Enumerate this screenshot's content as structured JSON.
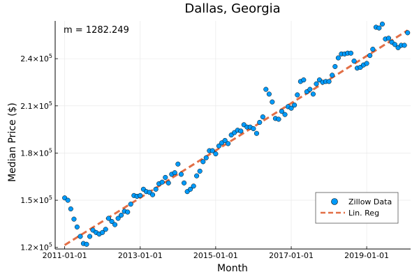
{
  "chart_data": {
    "type": "scatter",
    "title": "Dallas, Georgia",
    "xlabel": "Month",
    "ylabel": "Median Price ($)",
    "annotation": "m = 1282.249",
    "xlim": [
      "2010-10-01",
      "2020-03-01"
    ],
    "ylim": [
      119000,
      264000
    ],
    "grid": true,
    "legend_position": "bottom-right",
    "x_ticks": [
      "2011-01-01",
      "2013-01-01",
      "2015-01-01",
      "2017-01-01",
      "2019-01-01"
    ],
    "y_ticks": [
      {
        "value": 120000,
        "mantissa": "1.2×10",
        "exp": "5"
      },
      {
        "value": 150000,
        "mantissa": "1.5×10",
        "exp": "5"
      },
      {
        "value": 180000,
        "mantissa": "1.8×10",
        "exp": "5"
      },
      {
        "value": 210000,
        "mantissa": "2.1×10",
        "exp": "5"
      },
      {
        "value": 240000,
        "mantissa": "2.4×10",
        "exp": "5"
      }
    ],
    "series": [
      {
        "name": "Zillow Data",
        "kind": "scatter",
        "color": "#009af9",
        "points": [
          [
            "2011-01-01",
            151500
          ],
          [
            "2011-02-01",
            150000
          ],
          [
            "2011-03-01",
            144500
          ],
          [
            "2011-04-01",
            138000
          ],
          [
            "2011-05-01",
            133000
          ],
          [
            "2011-06-01",
            127000
          ],
          [
            "2011-07-01",
            122500
          ],
          [
            "2011-08-01",
            122000
          ],
          [
            "2011-09-01",
            127000
          ],
          [
            "2011-10-01",
            131000
          ],
          [
            "2011-11-01",
            129500
          ],
          [
            "2011-12-01",
            128500
          ],
          [
            "2012-01-01",
            129500
          ],
          [
            "2012-02-01",
            131500
          ],
          [
            "2012-03-01",
            138500
          ],
          [
            "2012-04-01",
            136500
          ],
          [
            "2012-05-01",
            134500
          ],
          [
            "2012-06-01",
            138500
          ],
          [
            "2012-07-01",
            140500
          ],
          [
            "2012-08-01",
            143000
          ],
          [
            "2012-09-01",
            142500
          ],
          [
            "2012-10-01",
            147500
          ],
          [
            "2012-11-01",
            153000
          ],
          [
            "2012-12-01",
            152500
          ],
          [
            "2013-01-01",
            153000
          ],
          [
            "2013-02-01",
            157000
          ],
          [
            "2013-03-01",
            155500
          ],
          [
            "2013-04-01",
            155000
          ],
          [
            "2013-05-01",
            153500
          ],
          [
            "2013-06-01",
            157000
          ],
          [
            "2013-07-01",
            160500
          ],
          [
            "2013-08-01",
            161500
          ],
          [
            "2013-09-01",
            164500
          ],
          [
            "2013-10-01",
            161000
          ],
          [
            "2013-11-01",
            166500
          ],
          [
            "2013-12-01",
            167500
          ],
          [
            "2014-01-01",
            173000
          ],
          [
            "2014-02-01",
            166500
          ],
          [
            "2014-03-01",
            161000
          ],
          [
            "2014-04-01",
            155500
          ],
          [
            "2014-05-01",
            157000
          ],
          [
            "2014-06-01",
            159000
          ],
          [
            "2014-07-01",
            165500
          ],
          [
            "2014-08-01",
            168500
          ],
          [
            "2014-09-01",
            174500
          ],
          [
            "2014-10-01",
            177000
          ],
          [
            "2014-11-01",
            181500
          ],
          [
            "2014-12-01",
            181500
          ],
          [
            "2015-01-01",
            179500
          ],
          [
            "2015-02-01",
            184500
          ],
          [
            "2015-03-01",
            186500
          ],
          [
            "2015-04-01",
            188000
          ],
          [
            "2015-05-01",
            186000
          ],
          [
            "2015-06-01",
            191500
          ],
          [
            "2015-07-01",
            193000
          ],
          [
            "2015-08-01",
            194500
          ],
          [
            "2015-09-01",
            194000
          ],
          [
            "2015-10-01",
            198000
          ],
          [
            "2015-11-01",
            196500
          ],
          [
            "2015-12-01",
            196500
          ],
          [
            "2016-01-01",
            195500
          ],
          [
            "2016-02-01",
            192500
          ],
          [
            "2016-03-01",
            199500
          ],
          [
            "2016-04-01",
            203000
          ],
          [
            "2016-05-01",
            220500
          ],
          [
            "2016-06-01",
            217500
          ],
          [
            "2016-07-01",
            212500
          ],
          [
            "2016-08-01",
            202000
          ],
          [
            "2016-09-01",
            201500
          ],
          [
            "2016-10-01",
            206500
          ],
          [
            "2016-11-01",
            204500
          ],
          [
            "2016-12-01",
            209500
          ],
          [
            "2017-01-01",
            208500
          ],
          [
            "2017-02-01",
            210500
          ],
          [
            "2017-03-01",
            217000
          ],
          [
            "2017-04-01",
            225500
          ],
          [
            "2017-05-01",
            226500
          ],
          [
            "2017-06-01",
            219000
          ],
          [
            "2017-07-01",
            220500
          ],
          [
            "2017-08-01",
            217500
          ],
          [
            "2017-09-01",
            224000
          ],
          [
            "2017-10-01",
            226500
          ],
          [
            "2017-11-01",
            225000
          ],
          [
            "2017-12-01",
            225500
          ],
          [
            "2018-01-01",
            225500
          ],
          [
            "2018-02-01",
            229500
          ],
          [
            "2018-03-01",
            235000
          ],
          [
            "2018-04-01",
            240500
          ],
          [
            "2018-05-01",
            243000
          ],
          [
            "2018-06-01",
            243000
          ],
          [
            "2018-07-01",
            243500
          ],
          [
            "2018-08-01",
            243500
          ],
          [
            "2018-09-01",
            238500
          ],
          [
            "2018-10-01",
            234000
          ],
          [
            "2018-11-01",
            234500
          ],
          [
            "2018-12-01",
            236000
          ],
          [
            "2019-01-01",
            237000
          ],
          [
            "2019-02-01",
            242000
          ],
          [
            "2019-03-01",
            246000
          ],
          [
            "2019-04-01",
            260000
          ],
          [
            "2019-05-01",
            259500
          ],
          [
            "2019-06-01",
            262000
          ],
          [
            "2019-07-01",
            252500
          ],
          [
            "2019-08-01",
            253000
          ],
          [
            "2019-09-01",
            250500
          ],
          [
            "2019-10-01",
            249000
          ],
          [
            "2019-11-01",
            247000
          ],
          [
            "2019-12-01",
            248500
          ],
          [
            "2020-01-01",
            248500
          ],
          [
            "2020-02-01",
            256500
          ]
        ]
      },
      {
        "name": "Lin. Reg",
        "kind": "line",
        "color": "#e26f46",
        "dash": "dashed",
        "points": [
          [
            "2011-01-01",
            121500
          ],
          [
            "2020-02-01",
            258000
          ]
        ]
      }
    ]
  }
}
